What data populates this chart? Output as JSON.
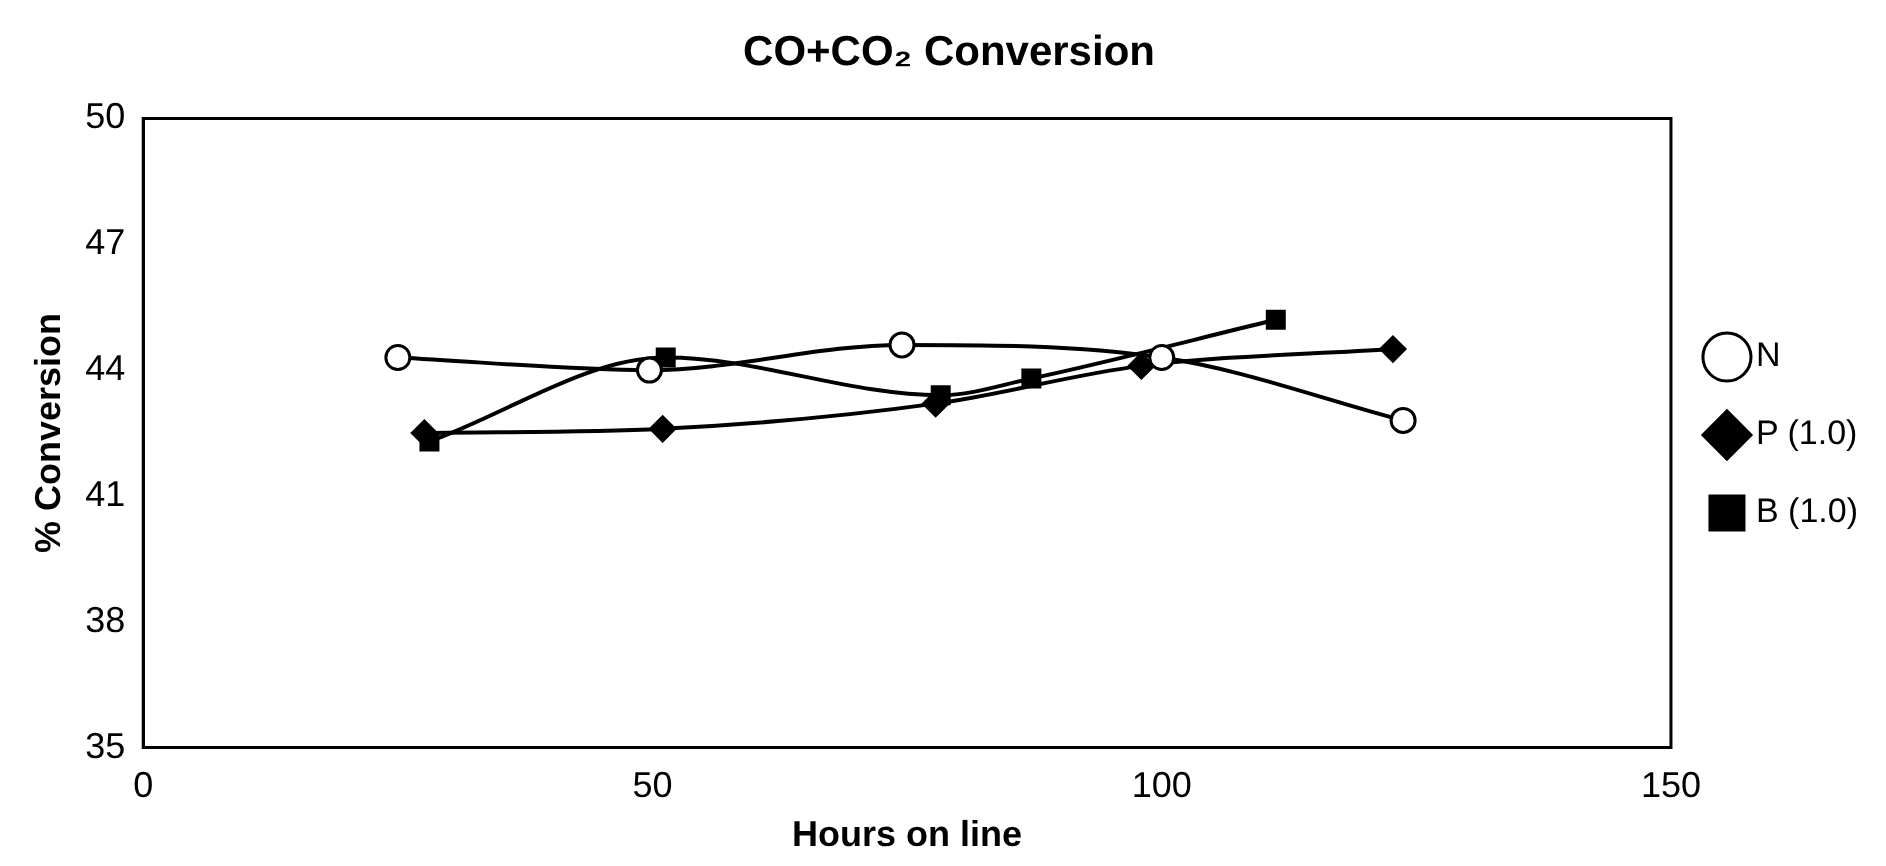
{
  "chart_data": {
    "type": "line",
    "title": "CO+CO₂ Conversion",
    "xlabel": "Hours on line",
    "ylabel": "% Conversion",
    "xlim": [
      0,
      150
    ],
    "xticks": [
      0,
      50,
      100,
      150
    ],
    "ylim": [
      35,
      50
    ],
    "yticks": [
      35,
      38,
      41,
      44,
      47,
      50
    ],
    "grid": false,
    "legend": "right",
    "series": [
      {
        "name": "N",
        "color": "#000000",
        "marker": "circle",
        "x": [
          25,
          49.7,
          74.5,
          100,
          123.7
        ],
        "values": [
          44.3,
          44.0,
          44.6,
          44.3,
          42.8
        ]
      },
      {
        "name": "P (1.0)",
        "color": "#000000",
        "marker": "diamond",
        "x": [
          27.6,
          51,
          77.8,
          98,
          122.7
        ],
        "values": [
          42.5,
          42.6,
          43.2,
          44.1,
          44.5
        ]
      },
      {
        "name": "B (1.0)",
        "color": "#000000",
        "marker": "square",
        "x": [
          28.1,
          51.3,
          78.3,
          87.2,
          111.2
        ],
        "values": [
          42.3,
          44.3,
          43.4,
          43.8,
          45.2
        ]
      }
    ]
  }
}
